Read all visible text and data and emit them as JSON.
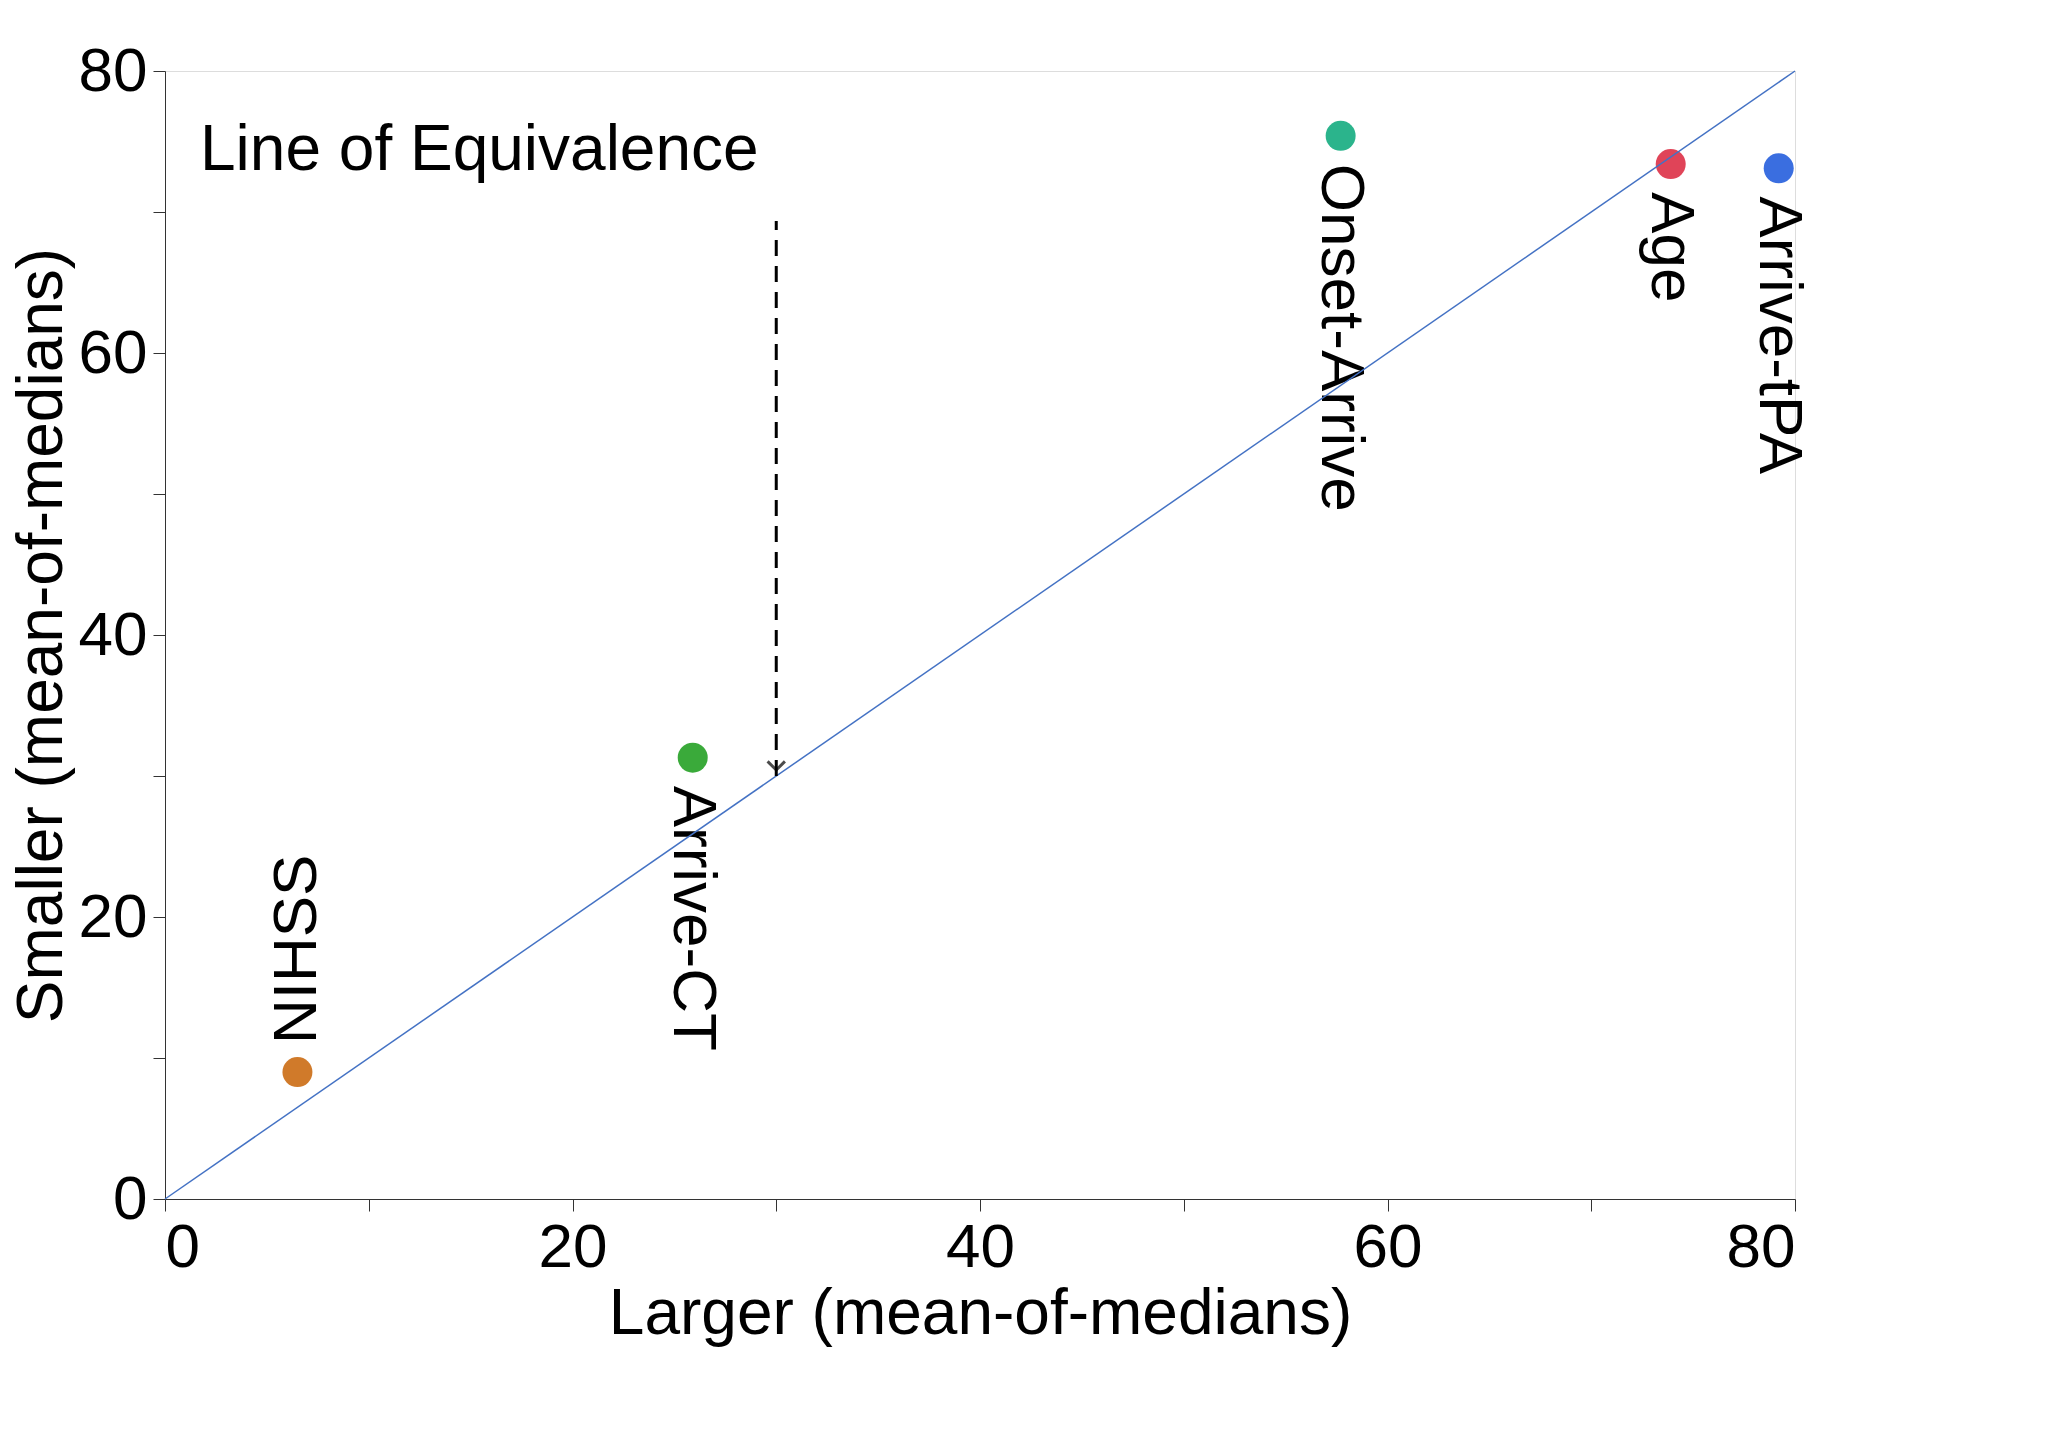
{
  "chart_data": {
    "type": "scatter",
    "xlabel": "Larger (mean-of-medians)",
    "ylabel": "Smaller (mean-of-medians)",
    "xlim": [
      0,
      80
    ],
    "ylim": [
      0,
      80
    ],
    "xticks": [
      0,
      {
        "value": 10,
        "label": null
      },
      20,
      {
        "value": 30,
        "label": null
      },
      40,
      {
        "value": 50,
        "label": null
      },
      60,
      {
        "value": 70,
        "label": null
      },
      80
    ],
    "yticks": [
      0,
      {
        "value": 10,
        "label": null
      },
      20,
      {
        "value": 30,
        "label": null
      },
      40,
      {
        "value": 50,
        "label": null
      },
      60,
      {
        "value": 70,
        "label": null
      },
      80
    ],
    "grid": false,
    "legend": false,
    "marker": "circle",
    "series": [
      {
        "name": "NIHSS",
        "color": "#d07a2a",
        "x": [
          6.5
        ],
        "values": [
          9.0
        ]
      },
      {
        "name": "Arrive-CT",
        "color": "#3aaa3a",
        "x": [
          25.9
        ],
        "values": [
          31.3
        ]
      },
      {
        "name": "Onset-Arrive",
        "color": "#2bb48c",
        "x": [
          57.7
        ],
        "values": [
          75.4
        ]
      },
      {
        "name": "Age",
        "color": "#e04458",
        "x": [
          73.9
        ],
        "values": [
          73.4
        ]
      },
      {
        "name": "Arrive-tPA",
        "color": "#3a6ee0",
        "x": [
          79.2
        ],
        "values": [
          73.1
        ]
      },
      {
        "type": "line",
        "color": "#4472c4",
        "x": [
          0,
          80
        ],
        "values": [
          0,
          80
        ],
        "line_style": "solid",
        "marker": "none"
      }
    ],
    "annotations": [
      {
        "text": "Line of Equivalence",
        "x": 30,
        "y": 30
      }
    ]
  }
}
